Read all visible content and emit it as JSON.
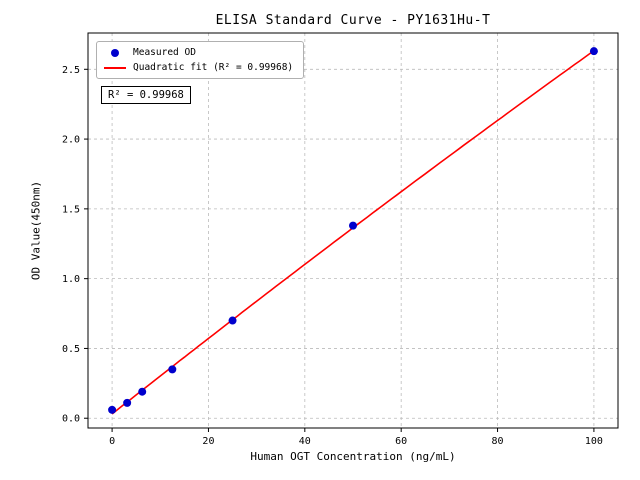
{
  "figure": {
    "background": "#ffffff"
  },
  "chart_data": {
    "type": "scatter",
    "title": "ELISA Standard Curve - PY1631Hu-T",
    "xlabel": "Human OGT Concentration (ng/mL)",
    "ylabel": "OD Value(450nm)",
    "xlim": [
      -5,
      105
    ],
    "ylim": [
      -0.07,
      2.76
    ],
    "xticks": [
      0,
      20,
      40,
      60,
      80,
      100
    ],
    "yticks": [
      0.0,
      0.5,
      1.0,
      1.5,
      2.0,
      2.5
    ],
    "grid": {
      "on": true,
      "style": "dashed",
      "color": "#bbbbbb"
    },
    "series": [
      {
        "name": "Measured OD",
        "type": "scatter",
        "marker": "circle",
        "color": "#0000cd",
        "x": [
          0,
          3.125,
          6.25,
          12.5,
          25,
          50,
          100
        ],
        "y": [
          0.06,
          0.11,
          0.19,
          0.35,
          0.7,
          1.38,
          2.63
        ]
      },
      {
        "name": "Quadratic fit (R² = 0.99968)",
        "type": "quadratic-fit",
        "color": "#ff0000"
      }
    ],
    "legend": {
      "position": "upper-left"
    },
    "annotation": "R² = 0.99968"
  }
}
